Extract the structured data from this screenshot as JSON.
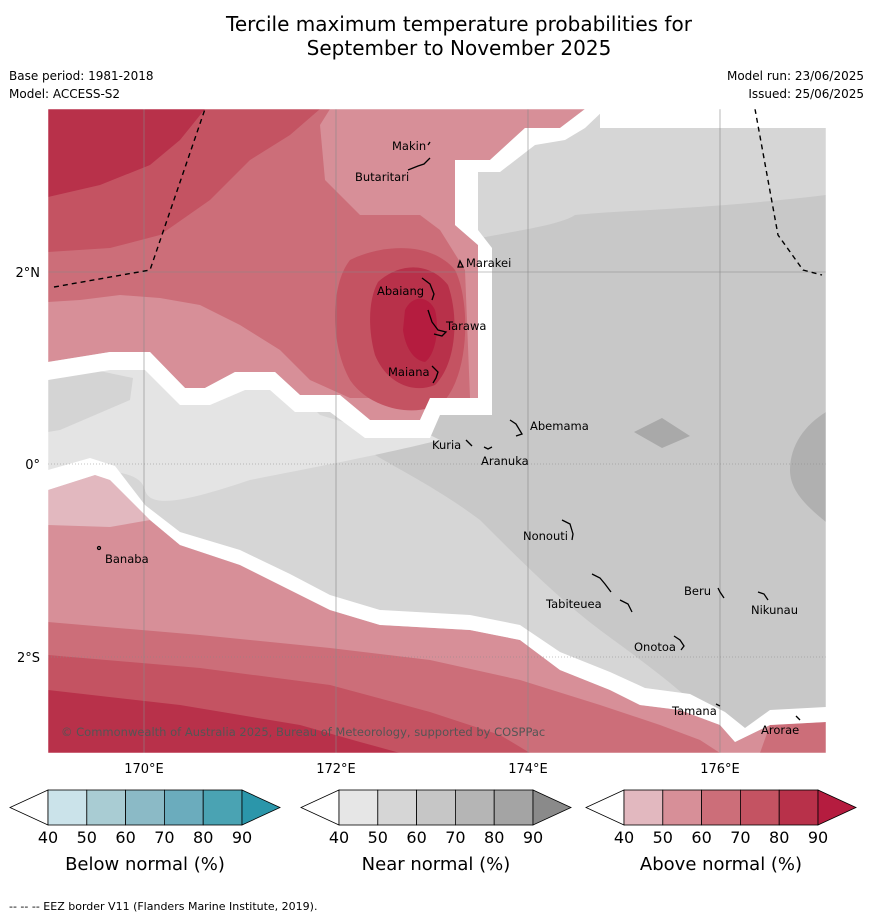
{
  "title_line1": "Tercile maximum temperature probabilities for",
  "title_line2": "September to November 2025",
  "base_period": "Base period: 1981-2018",
  "model": "Model: ACCESS-S2",
  "model_run": "Model run: 23/06/2025",
  "issued": "Issued: 25/06/2025",
  "map": {
    "lat_labels": [
      "2°N",
      "0°",
      "2°S"
    ],
    "lon_labels": [
      "170°E",
      "172°E",
      "174°E",
      "176°E"
    ],
    "copyright": "© Commonwealth of Australia 2025, Bureau of Meteorology, supported by COSPPac",
    "places": [
      {
        "name": "Makin"
      },
      {
        "name": "Butaritari"
      },
      {
        "name": "Marakei"
      },
      {
        "name": "Abaiang"
      },
      {
        "name": "Tarawa"
      },
      {
        "name": "Maiana"
      },
      {
        "name": "Abemama"
      },
      {
        "name": "Kuria"
      },
      {
        "name": "Aranuka"
      },
      {
        "name": "Nonouti"
      },
      {
        "name": "Banaba"
      },
      {
        "name": "Beru"
      },
      {
        "name": "Nikunau"
      },
      {
        "name": "Tabiteuea"
      },
      {
        "name": "Onotoa"
      },
      {
        "name": "Tamana"
      },
      {
        "name": "Arorae"
      }
    ]
  },
  "colorbars": [
    {
      "label": "Below normal (%)",
      "ticks": [
        "40",
        "50",
        "60",
        "70",
        "80",
        "90"
      ],
      "colors": [
        "#cbe3ea",
        "#a9ccd3",
        "#8bbac6",
        "#6bacbd",
        "#4aa3b3",
        "#2b96aa"
      ]
    },
    {
      "label": "Near normal (%)",
      "ticks": [
        "40",
        "50",
        "60",
        "70",
        "80",
        "90"
      ],
      "colors": [
        "#e6e6e6",
        "#d6d6d6",
        "#c6c6c6",
        "#b5b5b5",
        "#a4a4a4",
        "#8a8a8a"
      ]
    },
    {
      "label": "Above normal (%)",
      "ticks": [
        "40",
        "50",
        "60",
        "70",
        "80",
        "90"
      ],
      "colors": [
        "#e2b8bf",
        "#d78f98",
        "#cc6e79",
        "#c45362",
        "#b8314a",
        "#b51c3f"
      ]
    }
  ],
  "footer": "--  --  -- EEZ border V11 (Flanders Marine Institute, 2019)."
}
